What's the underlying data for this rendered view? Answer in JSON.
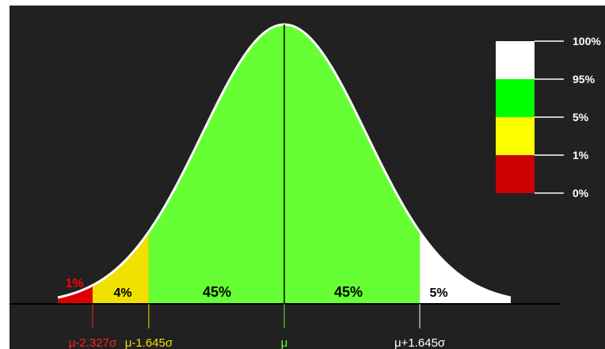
{
  "chart_data": {
    "type": "area",
    "title": "",
    "xlabel": "",
    "ylabel": "",
    "xlim": [
      -2.75,
      2.75
    ],
    "distribution": "normal",
    "regions": [
      {
        "label": "1%",
        "from": -2.75,
        "to": -2.327,
        "color": "#dd0000",
        "label_color": "#ff0000"
      },
      {
        "label": "4%",
        "from": -2.327,
        "to": -1.645,
        "color": "#f0e000",
        "label_color": "#000000"
      },
      {
        "label": "45%",
        "from": -1.645,
        "to": 0,
        "color": "#66ff33",
        "label_color": "#000000"
      },
      {
        "label": "45%",
        "from": 0,
        "to": 1.645,
        "color": "#66ff33",
        "label_color": "#000000"
      },
      {
        "label": "5%",
        "from": 1.645,
        "to": 2.75,
        "color": "#ffffff",
        "label_color": "#000000"
      }
    ],
    "x_ticks": [
      {
        "value": -2.327,
        "label": "μ-2.327σ",
        "color": "#ff2222"
      },
      {
        "value": -1.645,
        "label": "μ-1.645σ",
        "color": "#f0e000"
      },
      {
        "value": 0,
        "label": "μ",
        "color": "#66ff33"
      },
      {
        "value": 1.645,
        "label": "μ+1.645σ",
        "color": "#ffffff"
      }
    ],
    "legend": {
      "placement": "top-right",
      "swatches": [
        {
          "color": "#ffffff"
        },
        {
          "color": "#00ff00"
        },
        {
          "color": "#ffff00"
        },
        {
          "color": "#cc0000"
        }
      ],
      "ticks": [
        "100%",
        "95%",
        "5%",
        "1%",
        "0%"
      ]
    }
  }
}
